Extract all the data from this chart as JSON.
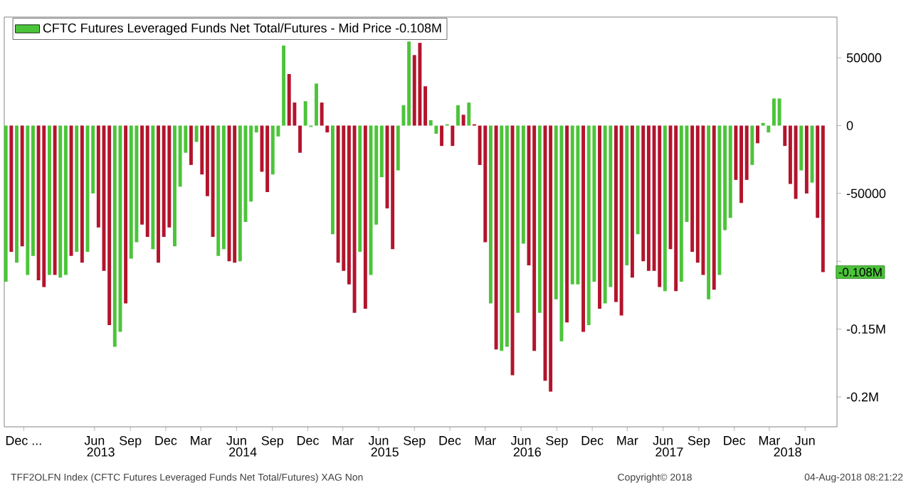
{
  "chart_data": {
    "type": "bar",
    "legend": "top left",
    "x": [
      "2012-10-30",
      "2012-11-13",
      "2012-11-27",
      "2012-12-11",
      "2012-12-25",
      "2013-01-08",
      "2013-01-22",
      "2013-02-05",
      "2013-02-19",
      "2013-03-05",
      "2013-03-19",
      "2013-04-02",
      "2013-04-16",
      "2013-04-30",
      "2013-05-14",
      "2013-05-28",
      "2013-06-11",
      "2013-06-25",
      "2013-07-09",
      "2013-07-23",
      "2013-08-06",
      "2013-08-20",
      "2013-09-03",
      "2013-09-17",
      "2013-10-01",
      "2013-10-15",
      "2013-10-29",
      "2013-11-12",
      "2013-11-26",
      "2013-12-10",
      "2013-12-24",
      "2014-01-07",
      "2014-01-21",
      "2014-02-04",
      "2014-02-18",
      "2014-03-04",
      "2014-03-18",
      "2014-04-01",
      "2014-04-15",
      "2014-04-29",
      "2014-05-13",
      "2014-05-27",
      "2014-06-10",
      "2014-06-24",
      "2014-07-08",
      "2014-07-22",
      "2014-08-05",
      "2014-08-19",
      "2014-09-02",
      "2014-09-16",
      "2014-09-30",
      "2014-10-14",
      "2014-10-28",
      "2014-11-11",
      "2014-11-25",
      "2014-12-09",
      "2014-12-23",
      "2015-01-06",
      "2015-01-20",
      "2015-02-03",
      "2015-02-17",
      "2015-03-03",
      "2015-03-17",
      "2015-03-31",
      "2015-04-14",
      "2015-04-28",
      "2015-05-12",
      "2015-05-26",
      "2015-06-09",
      "2015-06-23",
      "2015-07-07",
      "2015-07-21",
      "2015-08-04",
      "2015-08-18",
      "2015-09-01",
      "2015-09-15",
      "2015-09-29",
      "2015-10-13",
      "2015-10-27",
      "2015-11-10",
      "2015-11-24",
      "2015-12-08",
      "2015-12-22",
      "2016-01-05",
      "2016-01-19",
      "2016-02-02",
      "2016-02-16",
      "2016-03-01",
      "2016-03-15",
      "2016-03-29",
      "2016-04-12",
      "2016-04-26",
      "2016-05-10",
      "2016-05-24",
      "2016-06-07",
      "2016-06-21",
      "2016-07-05",
      "2016-07-19",
      "2016-08-02",
      "2016-08-16",
      "2016-08-30",
      "2016-09-13",
      "2016-09-27",
      "2016-10-11",
      "2016-10-25",
      "2016-11-08",
      "2016-11-22",
      "2016-12-06",
      "2016-12-20",
      "2017-01-03",
      "2017-01-17",
      "2017-01-31",
      "2017-02-14",
      "2017-02-28",
      "2017-03-14",
      "2017-03-28",
      "2017-04-11",
      "2017-04-25",
      "2017-05-09",
      "2017-05-23",
      "2017-06-06",
      "2017-06-20",
      "2017-07-04",
      "2017-07-18",
      "2017-08-01",
      "2017-08-15",
      "2017-08-29",
      "2017-09-12",
      "2017-09-26",
      "2017-10-10",
      "2017-10-24",
      "2017-11-07",
      "2017-11-21",
      "2017-12-05",
      "2017-12-19",
      "2018-01-02",
      "2018-01-16",
      "2018-01-30",
      "2018-02-13",
      "2018-02-27",
      "2018-03-13",
      "2018-03-27",
      "2018-04-10",
      "2018-04-24",
      "2018-05-08",
      "2018-05-22",
      "2018-06-05",
      "2018-06-19",
      "2018-07-03",
      "2018-07-17",
      "2018-07-31"
    ],
    "series": [
      {
        "name": "CFTC Futures Leveraged Funds Net Total/Futures - Mid Price -0.108M",
        "color": "#4cc43a",
        "values": [
          -115000,
          -93000,
          -101000,
          -89000,
          -110000,
          -96000,
          -114000,
          -119000,
          -110000,
          -110000,
          -112000,
          -110000,
          -96000,
          -93000,
          -101000,
          -93000,
          -50000,
          -75000,
          -107000,
          -147000,
          -163000,
          -152000,
          -131000,
          -98000,
          -86000,
          -73000,
          -82000,
          -91000,
          -101000,
          -82000,
          -75000,
          -89000,
          -45000,
          -20000,
          -29000,
          -12000,
          -36000,
          -52000,
          -82000,
          -96000,
          -91000,
          -100000,
          -101000,
          -100000,
          -71000,
          -56000,
          -5000,
          -34000,
          -49000,
          -36000,
          -8000,
          59000,
          38000,
          17000,
          -20000,
          18000,
          -1000,
          31000,
          17000,
          -5000,
          -80000,
          -101000,
          -107000,
          -117000,
          -138000,
          -93000,
          -135000,
          -110000,
          -73000,
          -38000,
          -61000,
          -91000,
          -33000,
          15000,
          62000,
          52000,
          61000,
          29000,
          4000,
          -6000,
          -15000,
          1000,
          -15000,
          15000,
          8000,
          17000,
          1000,
          -29000,
          -86000,
          -131000,
          -165000,
          -166000,
          -163000,
          -184000,
          -138000,
          -87000,
          -103000,
          -166000,
          -138000,
          -188000,
          -196000,
          -128000,
          -159000,
          -145000,
          -117000,
          -117000,
          -152000,
          -147000,
          -115000,
          -135000,
          -131000,
          -119000,
          -130000,
          -140000,
          -103000,
          -112000,
          -80000,
          -100000,
          -107000,
          -107000,
          -119000,
          -122000,
          -91000,
          -122000,
          -115000,
          -71000,
          -93000,
          -101000,
          -110000,
          -128000,
          -121000,
          -110000,
          -77000,
          -68000,
          -40000,
          -57000,
          -40000,
          -29000,
          -13000,
          2000,
          -5000,
          20000,
          20000,
          -15000,
          -43000,
          -54000,
          -33000,
          -50000,
          -42000,
          -68000,
          -108000
        ],
        "colors": [
          "#4cc43a",
          "#b3142c",
          "#4cc43a",
          "#b3142c",
          "#4cc43a",
          "#4cc43a",
          "#b3142c",
          "#b3142c",
          "#4cc43a",
          "#b3142c",
          "#4cc43a",
          "#4cc43a",
          "#b3142c",
          "#4cc43a",
          "#b3142c",
          "#4cc43a",
          "#4cc43a",
          "#b3142c",
          "#b3142c",
          "#b3142c",
          "#4cc43a",
          "#4cc43a",
          "#b3142c",
          "#4cc43a",
          "#4cc43a",
          "#b3142c",
          "#b3142c",
          "#4cc43a",
          "#b3142c",
          "#b3142c",
          "#b3142c",
          "#4cc43a",
          "#4cc43a",
          "#4cc43a",
          "#b3142c",
          "#4cc43a",
          "#b3142c",
          "#b3142c",
          "#b3142c",
          "#4cc43a",
          "#4cc43a",
          "#b3142c",
          "#b3142c",
          "#4cc43a",
          "#4cc43a",
          "#4cc43a",
          "#4cc43a",
          "#b3142c",
          "#b3142c",
          "#4cc43a",
          "#4cc43a",
          "#4cc43a",
          "#b3142c",
          "#b3142c",
          "#b3142c",
          "#4cc43a",
          "#4cc43a",
          "#4cc43a",
          "#b3142c",
          "#b3142c",
          "#4cc43a",
          "#b3142c",
          "#b3142c",
          "#b3142c",
          "#b3142c",
          "#4cc43a",
          "#b3142c",
          "#4cc43a",
          "#4cc43a",
          "#4cc43a",
          "#b3142c",
          "#b3142c",
          "#4cc43a",
          "#4cc43a",
          "#4cc43a",
          "#b3142c",
          "#b3142c",
          "#b3142c",
          "#4cc43a",
          "#4cc43a",
          "#b3142c",
          "#4cc43a",
          "#b3142c",
          "#4cc43a",
          "#b3142c",
          "#4cc43a",
          "#b3142c",
          "#b3142c",
          "#b3142c",
          "#4cc43a",
          "#b3142c",
          "#4cc43a",
          "#4cc43a",
          "#b3142c",
          "#4cc43a",
          "#4cc43a",
          "#b3142c",
          "#b3142c",
          "#4cc43a",
          "#b3142c",
          "#b3142c",
          "#4cc43a",
          "#4cc43a",
          "#b3142c",
          "#4cc43a",
          "#4cc43a",
          "#b3142c",
          "#4cc43a",
          "#4cc43a",
          "#b3142c",
          "#4cc43a",
          "#4cc43a",
          "#b3142c",
          "#b3142c",
          "#4cc43a",
          "#b3142c",
          "#4cc43a",
          "#b3142c",
          "#b3142c",
          "#b3142c",
          "#b3142c",
          "#4cc43a",
          "#b3142c",
          "#b3142c",
          "#4cc43a",
          "#4cc43a",
          "#b3142c",
          "#b3142c",
          "#b3142c",
          "#4cc43a",
          "#b3142c",
          "#4cc43a",
          "#4cc43a",
          "#4cc43a",
          "#b3142c",
          "#b3142c",
          "#b3142c",
          "#4cc43a",
          "#b3142c",
          "#4cc43a",
          "#4cc43a",
          "#4cc43a",
          "#4cc43a",
          "#b3142c",
          "#b3142c",
          "#b3142c",
          "#4cc43a",
          "#b3142c",
          "#4cc43a",
          "#b3142c",
          "#b3142c"
        ]
      }
    ],
    "xlim": [
      "2012-10-26",
      "2018-09-05"
    ],
    "xticks": [
      {
        "value": "2012-12-15",
        "label": "Dec ..."
      },
      {
        "value": "2013-06-15",
        "label": "Jun"
      },
      {
        "value": "2013-09-15",
        "label": "Sep"
      },
      {
        "value": "2013-12-15",
        "label": "Dec"
      },
      {
        "value": "2014-03-15",
        "label": "Mar"
      },
      {
        "value": "2014-06-15",
        "label": "Jun"
      },
      {
        "value": "2014-09-15",
        "label": "Sep"
      },
      {
        "value": "2014-12-15",
        "label": "Dec"
      },
      {
        "value": "2015-03-15",
        "label": "Mar"
      },
      {
        "value": "2015-06-15",
        "label": "Jun"
      },
      {
        "value": "2015-09-15",
        "label": "Sep"
      },
      {
        "value": "2015-12-15",
        "label": "Dec"
      },
      {
        "value": "2016-03-15",
        "label": "Mar"
      },
      {
        "value": "2016-06-15",
        "label": "Jun"
      },
      {
        "value": "2016-09-15",
        "label": "Sep"
      },
      {
        "value": "2016-12-15",
        "label": "Dec"
      },
      {
        "value": "2017-03-15",
        "label": "Mar"
      },
      {
        "value": "2017-06-15",
        "label": "Jun"
      },
      {
        "value": "2017-09-15",
        "label": "Sep"
      },
      {
        "value": "2017-12-15",
        "label": "Dec"
      },
      {
        "value": "2018-03-15",
        "label": "Mar"
      },
      {
        "value": "2018-06-15",
        "label": "Jun"
      }
    ],
    "x2lim": [
      "2012-10-26",
      "2018-09-05"
    ],
    "x2ticks": [
      {
        "value": "2013-07-01",
        "label": "2013"
      },
      {
        "value": "2014-07-01",
        "label": "2014"
      },
      {
        "value": "2015-07-01",
        "label": "2015"
      },
      {
        "value": "2016-07-01",
        "label": "2016"
      },
      {
        "value": "2017-07-01",
        "label": "2017"
      },
      {
        "value": "2018-05-01",
        "label": "2018"
      }
    ],
    "ylim": [
      -222000,
      80000
    ],
    "yticks": [
      50000,
      0,
      -50000,
      {
        "value": -100000,
        "label": null
      },
      {
        "value": -150000,
        "label": "-0.15M"
      },
      {
        "value": -200000,
        "label": "-0.2M"
      }
    ],
    "annotations": [
      {
        "text": "-0.108M",
        "x": "2018-07-31",
        "y": -108000
      },
      "TFF2OLFN Index (CFTC Futures Leveraged Funds Net Total/Futures) XAG Non",
      "Copyright© 2018",
      "04-Aug-2018 08:21:22"
    ]
  }
}
